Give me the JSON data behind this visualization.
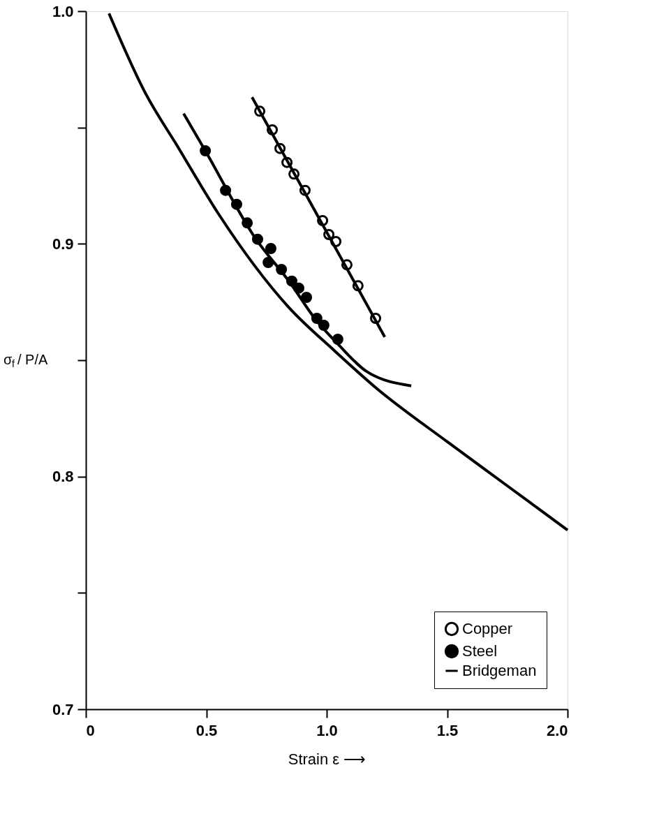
{
  "chart_data": {
    "type": "line",
    "xlabel": "Strain ε ⟶",
    "ylabel": "σ$_{f}$ / P/A",
    "xlim": [
      0,
      2.0
    ],
    "ylim": [
      0.7,
      1.0
    ],
    "xticks": [
      0,
      0.5,
      {
        "value": 1.0,
        "label": "1.0"
      },
      1.5,
      {
        "value": 2.0,
        "label": "2.0"
      }
    ],
    "yticks": [
      {
        "value": 0.7,
        "label": "0.7"
      },
      {
        "value": 0.75,
        "label": null
      },
      {
        "value": 0.8,
        "label": "0.8"
      },
      {
        "value": 0.85,
        "label": null
      },
      {
        "value": 0.9,
        "label": "0.9"
      },
      {
        "value": 0.95,
        "label": null
      },
      {
        "value": 1.0,
        "label": "1.0"
      }
    ],
    "grid": false,
    "legend": "bottom right",
    "line_style": "solid",
    "series": [
      {
        "name": "Copper",
        "type": "scatter",
        "color": "#ffffff",
        "marker": "circle",
        "x": [
          0.722,
          0.774,
          0.806,
          0.835,
          0.864,
          0.91,
          0.983,
          1.009,
          1.038,
          1.084,
          1.13,
          1.203
        ],
        "values": [
          0.957,
          0.949,
          0.941,
          0.935,
          0.93,
          0.923,
          0.91,
          0.904,
          0.901,
          0.891,
          0.882,
          0.868
        ]
      },
      {
        "name": "Steel",
        "type": "scatter",
        "color": "#000000",
        "marker": "circle",
        "x": [
          0.496,
          0.58,
          0.626,
          0.67,
          0.713,
          0.757,
          0.768,
          0.812,
          0.855,
          0.884,
          0.916,
          0.959,
          0.988,
          1.046
        ],
        "values": [
          0.94,
          0.923,
          0.917,
          0.909,
          0.902,
          0.892,
          0.898,
          0.889,
          0.884,
          0.881,
          0.877,
          0.868,
          0.865,
          0.859
        ]
      },
      {
        "name": "Bridgeman",
        "color": "#000000",
        "marker": "none",
        "x": [
          0.096,
          0.241,
          0.386,
          0.55,
          0.84,
          1.033,
          1.206,
          1.5,
          1.75,
          2.0
        ],
        "values": [
          0.999,
          0.966,
          0.941,
          0.913,
          0.873,
          0.854,
          0.838,
          0.815,
          0.796,
          0.777
        ]
      },
      {
        "color": "#000000",
        "marker": "none",
        "x": [
          0.69,
          1.241
        ],
        "values": [
          0.963,
          0.86
        ]
      },
      {
        "color": "#000000",
        "marker": "none",
        "x": [
          0.406,
          0.496,
          0.7,
          0.85,
          0.95,
          1.046,
          1.168,
          1.351
        ],
        "values": [
          0.956,
          0.94,
          0.903,
          0.883,
          0.868,
          0.857,
          0.845,
          0.839
        ]
      }
    ]
  }
}
